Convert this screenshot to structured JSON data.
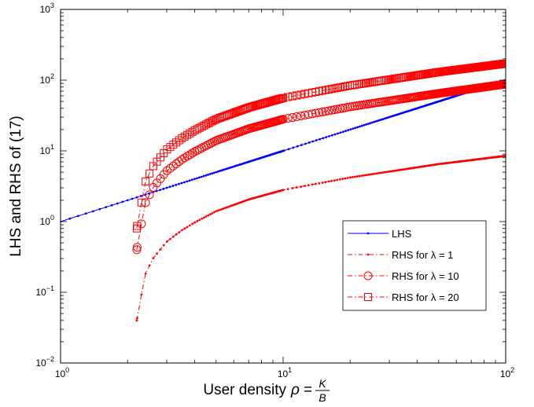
{
  "chart_data": {
    "type": "line",
    "xscale": "log",
    "yscale": "log",
    "xlim": [
      1,
      100
    ],
    "ylim": [
      0.01,
      1000
    ],
    "grid": false,
    "legend_position": "bottom-right",
    "xlabel_text": "User density",
    "xlabel_math": "ρ = K/B",
    "ylabel": "LHS and RHS of (17)",
    "x_ticks": [
      {
        "base": "10",
        "exp": "0"
      },
      {
        "base": "10",
        "exp": "1"
      },
      {
        "base": "10",
        "exp": "2"
      }
    ],
    "y_ticks": [
      {
        "base": "10",
        "exp": "−2"
      },
      {
        "base": "10",
        "exp": "−1"
      },
      {
        "base": "10",
        "exp": "0"
      },
      {
        "base": "10",
        "exp": "1"
      },
      {
        "base": "10",
        "exp": "2"
      },
      {
        "base": "10",
        "exp": "3"
      }
    ],
    "series": [
      {
        "name": "LHS",
        "color": "#0000ff",
        "style": "solid",
        "marker": "dot",
        "x": [
          1,
          1.5,
          2,
          3,
          5,
          10,
          20,
          50,
          100
        ],
        "y": [
          1,
          1.5,
          2,
          3,
          5,
          10,
          20,
          50,
          100
        ]
      },
      {
        "name": "RHS for λ = 1",
        "color": "#ff0000",
        "style": "dashdot",
        "marker": "dot",
        "x": [
          2.2,
          2.4,
          2.6,
          3,
          3.5,
          4,
          5,
          7,
          10,
          20,
          50,
          100
        ],
        "y": [
          0.04,
          0.18,
          0.3,
          0.52,
          0.75,
          0.97,
          1.4,
          2.05,
          2.8,
          4.2,
          6.5,
          8.5
        ]
      },
      {
        "name": "RHS for λ = 10",
        "color": "#ff0000",
        "style": "dashdot",
        "marker": "circle",
        "x": [
          2.2,
          2.4,
          2.6,
          3,
          3.5,
          4,
          5,
          7,
          10,
          20,
          50,
          100
        ],
        "y": [
          0.4,
          1.8,
          3.0,
          5.2,
          7.5,
          9.7,
          14,
          20.5,
          28,
          42,
          65,
          88
        ]
      },
      {
        "name": "RHS for λ = 20",
        "color": "#ff0000",
        "style": "dashdot",
        "marker": "square",
        "x": [
          2.2,
          2.4,
          2.6,
          3,
          3.5,
          4,
          5,
          7,
          10,
          20,
          50,
          100
        ],
        "y": [
          0.8,
          3.6,
          6.0,
          10.4,
          15,
          19.4,
          28,
          41,
          56,
          84,
          130,
          172
        ]
      }
    ]
  }
}
